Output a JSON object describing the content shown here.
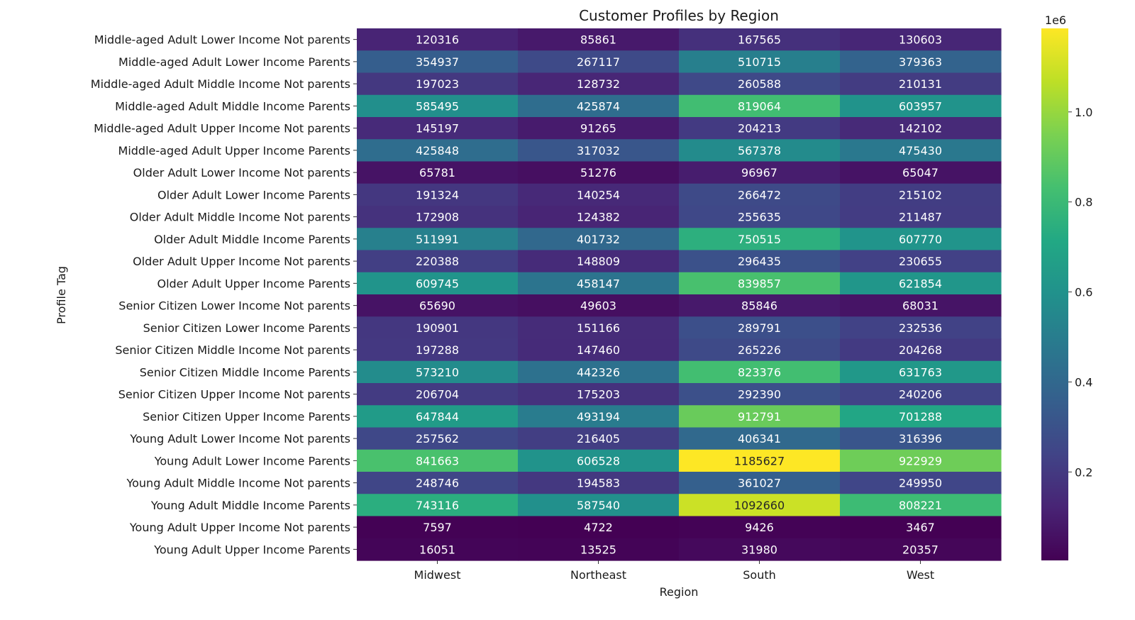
{
  "chart_data": {
    "type": "heatmap",
    "title": "Customer Profiles by Region",
    "xlabel": "Region",
    "ylabel": "Profile Tag",
    "colormap": "viridis",
    "columns": [
      "Midwest",
      "Northeast",
      "South",
      "West"
    ],
    "rows": [
      "Middle-aged Adult Lower Income Not parents",
      "Middle-aged Adult Lower Income Parents",
      "Middle-aged Adult Middle Income Not parents",
      "Middle-aged Adult Middle Income Parents",
      "Middle-aged Adult Upper Income Not parents",
      "Middle-aged Adult Upper Income Parents",
      "Older Adult Lower Income Not parents",
      "Older Adult Lower Income Parents",
      "Older Adult Middle Income Not parents",
      "Older Adult Middle Income Parents",
      "Older Adult Upper Income Not parents",
      "Older Adult Upper Income Parents",
      "Senior Citizen Lower Income Not parents",
      "Senior Citizen Lower Income Parents",
      "Senior Citizen Middle Income Not parents",
      "Senior Citizen Middle Income Parents",
      "Senior Citizen Upper Income Not parents",
      "Senior Citizen Upper Income Parents",
      "Young Adult Lower Income Not parents",
      "Young Adult Lower Income Parents",
      "Young Adult Middle Income Not parents",
      "Young Adult Middle Income Parents",
      "Young Adult Upper Income Not parents",
      "Young Adult Upper Income Parents"
    ],
    "values": [
      [
        120316,
        85861,
        167565,
        130603
      ],
      [
        354937,
        267117,
        510715,
        379363
      ],
      [
        197023,
        128732,
        260588,
        210131
      ],
      [
        585495,
        425874,
        819064,
        603957
      ],
      [
        145197,
        91265,
        204213,
        142102
      ],
      [
        425848,
        317032,
        567378,
        475430
      ],
      [
        65781,
        51276,
        96967,
        65047
      ],
      [
        191324,
        140254,
        266472,
        215102
      ],
      [
        172908,
        124382,
        255635,
        211487
      ],
      [
        511991,
        401732,
        750515,
        607770
      ],
      [
        220388,
        148809,
        296435,
        230655
      ],
      [
        609745,
        458147,
        839857,
        621854
      ],
      [
        65690,
        49603,
        85846,
        68031
      ],
      [
        190901,
        151166,
        289791,
        232536
      ],
      [
        197288,
        147460,
        265226,
        204268
      ],
      [
        573210,
        442326,
        823376,
        631763
      ],
      [
        206704,
        175203,
        292390,
        240206
      ],
      [
        647844,
        493194,
        912791,
        701288
      ],
      [
        257562,
        216405,
        406341,
        316396
      ],
      [
        841663,
        606528,
        1185627,
        922929
      ],
      [
        248746,
        194583,
        361027,
        249950
      ],
      [
        743116,
        587540,
        1092660,
        808221
      ],
      [
        7597,
        4722,
        9426,
        3467
      ],
      [
        16051,
        13525,
        31980,
        20357
      ]
    ],
    "colorbar": {
      "multiplier_label": "1e6",
      "ticks": [
        0.2,
        0.4,
        0.6,
        0.8,
        1.0
      ],
      "tick_labels": [
        "0.2",
        "0.4",
        "0.6",
        "0.8",
        "1.0"
      ],
      "scale": 1000000,
      "vmin": 3467,
      "vmax": 1185627
    }
  }
}
